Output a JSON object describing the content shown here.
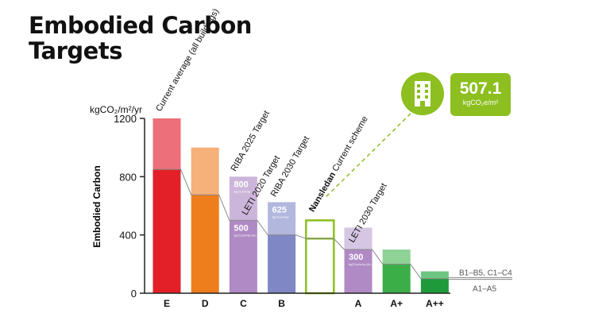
{
  "title_line1": "Embodied Carbon",
  "title_line2": "Targets",
  "callout": {
    "value": "507.1",
    "unit": "kgCO₂e/m²",
    "icon": "building-icon",
    "color": "#8cbf1f"
  },
  "chart_data": {
    "type": "bar",
    "unit_label": "kgCO₂/m²/yr",
    "ylabel": "Embodied Carbon",
    "ylim": [
      0,
      1200
    ],
    "yticks": [
      "0",
      "400",
      "800",
      "1200"
    ],
    "categories": [
      "E",
      "D",
      "C",
      "B",
      "",
      "A",
      "A+",
      "A++"
    ],
    "series": [
      {
        "name": "A1–A5",
        "values": [
          850,
          675,
          500,
          400,
          375,
          300,
          200,
          100
        ]
      },
      {
        "name": "B1–B5, C1–C4",
        "values": [
          350,
          325,
          300,
          225,
          125,
          150,
          100,
          50
        ]
      }
    ],
    "colors": {
      "A1–A5": [
        "#e32027",
        "#ee7d1c",
        "#b08ac4",
        "#7f87c4",
        "#ffffff",
        "#b08ac4",
        "#3cae48",
        "#1e9a3a"
      ],
      "B1–B5, C1–C4": [
        "#ec6f79",
        "#f6b07a",
        "#ccb5da",
        "#b2b7de",
        "#ffffff",
        "#d6c6e4",
        "#8ed296",
        "#6cc583"
      ],
      "outline": "#8cbf1f"
    },
    "bar_labels": [
      {
        "text": "Current average (all buildings)",
        "category": "E"
      },
      {
        "text": "RIBA 2025 Target",
        "category": "C"
      },
      {
        "text": "LETI 2020 Target",
        "category": "C"
      },
      {
        "text": "RIBA 2030 Target",
        "category": "B"
      },
      {
        "text_bold": "Nansledan",
        "text": "Current scheme",
        "category": ""
      },
      {
        "text": "LETI 2030 Target",
        "category": "A"
      }
    ],
    "value_labels": [
      {
        "value": "800",
        "sub": "kgCO₂e/m²/yr",
        "category": "C",
        "level": 800
      },
      {
        "value": "500",
        "sub": "kgCO₂e/m²/yr (A1–A5 only)",
        "category": "C",
        "level": 500
      },
      {
        "value": "625",
        "sub": "kgCO₂e/m²/yr",
        "category": "B",
        "level": 625
      },
      {
        "value": "300",
        "sub": "kgCO₂e/m²/yr (A1–A5 only)",
        "category": "A",
        "level": 300
      }
    ],
    "legend": [
      "B1–B5, C1–C4",
      "A1–A5"
    ],
    "legend_position": "right",
    "grid": false
  }
}
